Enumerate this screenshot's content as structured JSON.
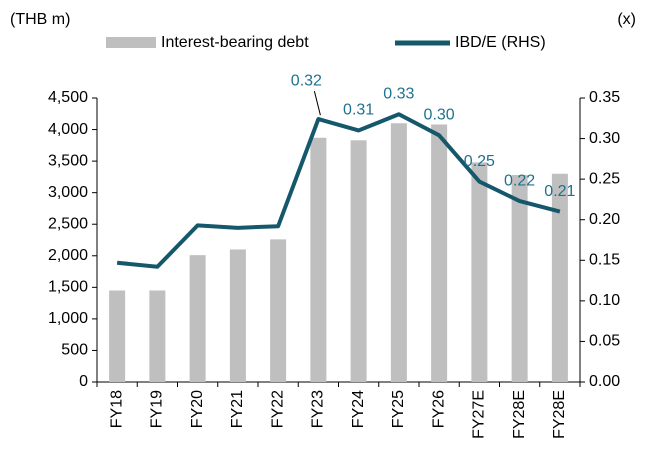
{
  "chart_data": {
    "type": "bar",
    "y_label": "(THB m)",
    "y2_label": "(x)",
    "categories": [
      "FY18",
      "FY19",
      "FY20",
      "FY21",
      "FY22",
      "FY23",
      "FY24",
      "FY25",
      "FY26",
      "FY27E",
      "FY28E",
      "FY28E"
    ],
    "series": [
      {
        "name": "Interest-bearing debt",
        "type": "bar",
        "color": "#bfbfbf",
        "values": [
          1450,
          1450,
          2010,
          2100,
          2260,
          3870,
          3830,
          4100,
          4080,
          3480,
          3280,
          3300
        ]
      },
      {
        "name": "IBD/E (RHS)",
        "type": "line",
        "axis": "y2",
        "color": "#15586b",
        "values": [
          0.147,
          0.142,
          0.193,
          0.19,
          0.192,
          0.324,
          0.31,
          0.33,
          0.304,
          0.247,
          0.223,
          0.21
        ],
        "value_labels": [
          null,
          null,
          null,
          null,
          null,
          "0.32",
          "0.31",
          "0.33",
          "0.30",
          "0.25",
          "0.22",
          "0.21"
        ],
        "label_color": "#1f7190"
      }
    ],
    "ylim": [
      0,
      4500
    ],
    "yticks": [
      0,
      500,
      {
        "value": 1000,
        "label": "1,000"
      },
      {
        "value": 1500,
        "label": "1,500"
      },
      {
        "value": 2000,
        "label": "2,000"
      },
      {
        "value": 2500,
        "label": "2,500"
      },
      {
        "value": 3000,
        "label": "3,000"
      },
      {
        "value": 3500,
        "label": "3,500"
      },
      {
        "value": 4000,
        "label": "4,000"
      },
      {
        "value": 4500,
        "label": "4,500"
      }
    ],
    "y2lim": [
      0,
      0.35
    ],
    "y2ticks": [
      {
        "value": 0,
        "label": "0.00"
      },
      {
        "value": 0.05,
        "label": "0.05"
      },
      {
        "value": 0.1,
        "label": "0.10"
      },
      {
        "value": 0.15,
        "label": "0.15"
      },
      {
        "value": 0.2,
        "label": "0.20"
      },
      {
        "value": 0.25,
        "label": "0.25"
      },
      {
        "value": 0.3,
        "label": "0.30"
      },
      {
        "value": 0.35,
        "label": "0.35"
      }
    ],
    "grid": false,
    "legend": "top"
  }
}
